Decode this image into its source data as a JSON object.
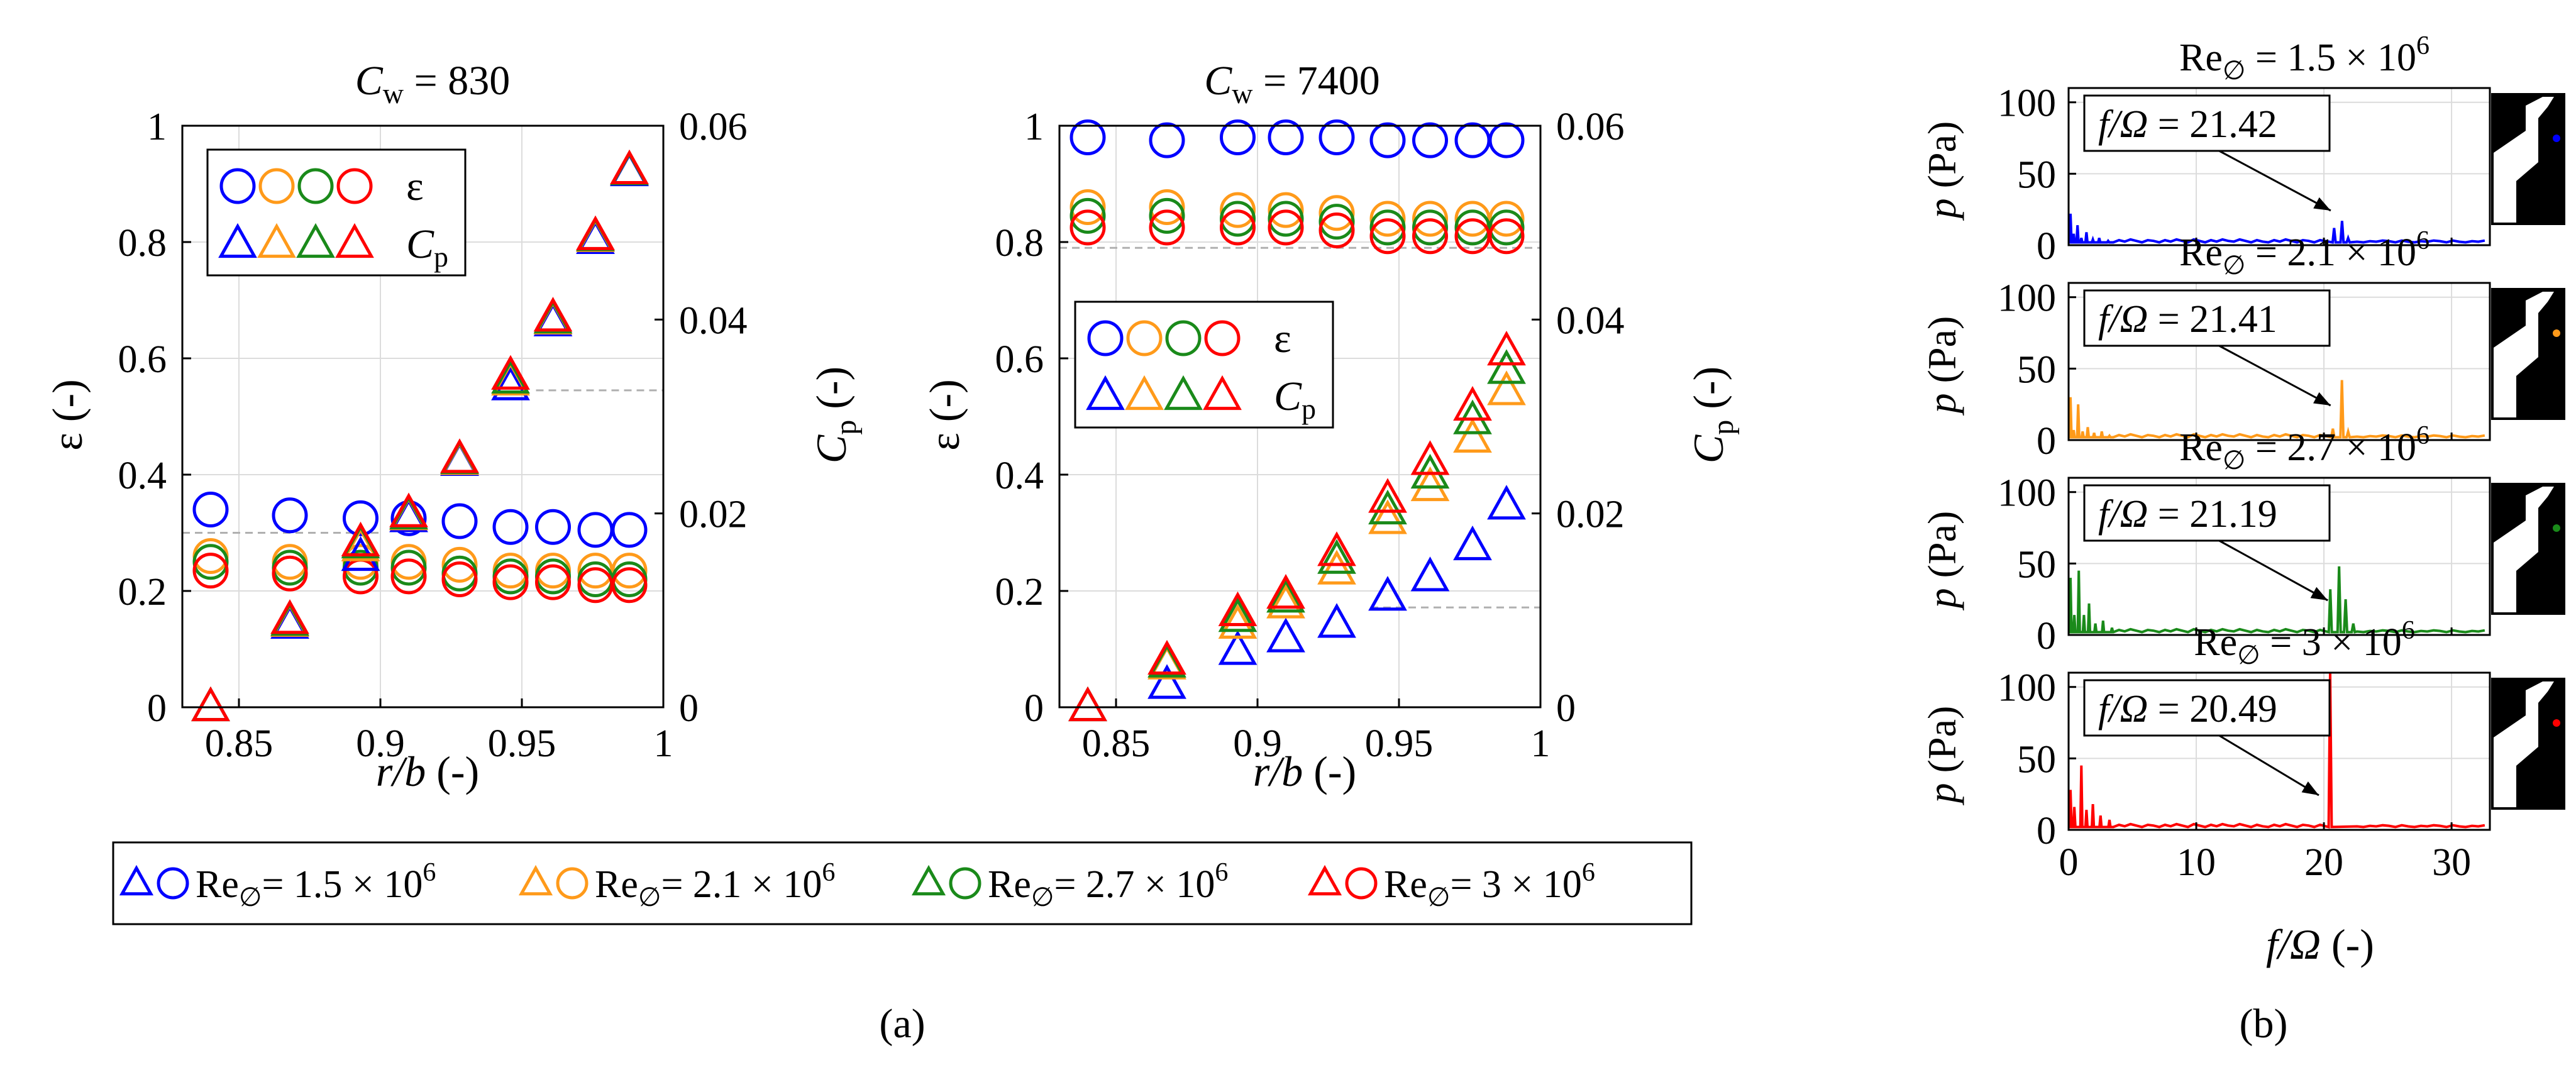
{
  "colors": {
    "Re_1.5e6": "#0000ff",
    "Re_2.1e6": "#ff9a1a",
    "Re_2.7e6": "#1a8a1a",
    "Re_3e6": "#ff0000",
    "grid": "#dcdcdc",
    "guide_dashed": "#b0b0b0"
  },
  "shared_legend": {
    "entries": [
      {
        "series": "Re_1.5e6",
        "text": "Re",
        "sub": "∅",
        "rest": "= 1.5 × 10",
        "sup": "6"
      },
      {
        "series": "Re_2.1e6",
        "text": "Re",
        "sub": "∅",
        "rest": "= 2.1 × 10",
        "sup": "6"
      },
      {
        "series": "Re_2.7e6",
        "text": "Re",
        "sub": "∅",
        "rest": "= 2.7 × 10",
        "sup": "6"
      },
      {
        "series": "Re_3e6",
        "text": "Re",
        "sub": "∅",
        "rest": "= 3 × 10",
        "sup": "6"
      }
    ]
  },
  "panel_labels": {
    "a": "(a)",
    "b": "(b)"
  },
  "chart_data": [
    {
      "type": "scatter",
      "id": "cw830",
      "title": {
        "main": "C",
        "sub": "w",
        "rest": " = 830"
      },
      "xlabel": {
        "main": "r/b",
        "rest": "  (-)"
      },
      "ylabel_left": "ε (-)",
      "ylabel_right": {
        "main": "C",
        "sub": "p",
        "rest": " (-)"
      },
      "xlim": [
        0.83,
        1.0
      ],
      "ylim_left": [
        0,
        1
      ],
      "ylim_right": [
        0,
        0.06
      ],
      "xticks": [
        0.85,
        0.9,
        0.95,
        1
      ],
      "xtick_labels": [
        "0.85",
        "0.9",
        "0.95",
        "1"
      ],
      "yticks_left": [
        0,
        0.2,
        0.4,
        0.6,
        0.8,
        1
      ],
      "ytick_labels_left": [
        "0",
        "0.2",
        "0.4",
        "0.6",
        "0.8",
        "1"
      ],
      "yticks_right": [
        0,
        0.02,
        0.04,
        0.06
      ],
      "ytick_labels_right": [
        "0",
        "0.02",
        "0.04",
        "0.06"
      ],
      "grid": true,
      "guide_lines": [
        {
          "axis": "left",
          "y": 0.3,
          "x_from": 0.83,
          "x_to": 0.9
        },
        {
          "axis": "right",
          "y": 0.0327,
          "x_from": 0.955,
          "x_to": 1.0
        }
      ],
      "legend": {
        "position": "top-left",
        "rows": [
          {
            "marker": "circle",
            "label": "ε",
            "label_sub": ""
          },
          {
            "marker": "triangle",
            "label": "C",
            "label_sub": "p"
          }
        ]
      },
      "r_b": [
        0.84,
        0.868,
        0.893,
        0.91,
        0.928,
        0.946,
        0.961,
        0.976,
        0.988
      ],
      "series": [
        {
          "key": "Re_1.5e6",
          "epsilon": [
            0.34,
            0.33,
            0.325,
            0.325,
            0.32,
            0.31,
            0.31,
            0.305,
            0.305
          ],
          "Cp": [
            0.0,
            0.0085,
            0.0155,
            0.0195,
            0.0253,
            0.0331,
            0.0397,
            0.0482,
            0.0552
          ]
        },
        {
          "key": "Re_2.1e6",
          "epsilon": [
            0.26,
            0.25,
            0.25,
            0.25,
            0.245,
            0.235,
            0.235,
            0.235,
            0.235
          ],
          "Cp": [
            0.0,
            0.0087,
            0.0165,
            0.0197,
            0.0254,
            0.0336,
            0.0399,
            0.0484,
            0.0553
          ]
        },
        {
          "key": "Re_2.7e6",
          "epsilon": [
            0.25,
            0.24,
            0.24,
            0.24,
            0.23,
            0.225,
            0.225,
            0.22,
            0.22
          ],
          "Cp": [
            0.0,
            0.0088,
            0.0168,
            0.0198,
            0.0255,
            0.0338,
            0.04,
            0.0485,
            0.0553
          ]
        },
        {
          "key": "Re_3e6",
          "epsilon": [
            0.235,
            0.23,
            0.225,
            0.225,
            0.22,
            0.215,
            0.215,
            0.21,
            0.21
          ],
          "Cp": [
            0.0,
            0.009,
            0.017,
            0.02,
            0.0256,
            0.0342,
            0.0402,
            0.0486,
            0.0554
          ]
        }
      ]
    },
    {
      "type": "scatter",
      "id": "cw7400",
      "title": {
        "main": "C",
        "sub": "w",
        "rest": " = 7400"
      },
      "xlabel": {
        "main": "r/b",
        "rest": "  (-)"
      },
      "ylabel_left": "ε (-)",
      "ylabel_right": {
        "main": "C",
        "sub": "p",
        "rest": " (-)"
      },
      "xlim": [
        0.83,
        1.0
      ],
      "ylim_left": [
        0,
        1
      ],
      "ylim_right": [
        0,
        0.06
      ],
      "xticks": [
        0.85,
        0.9,
        0.95,
        1
      ],
      "xtick_labels": [
        "0.85",
        "0.9",
        "0.95",
        "1"
      ],
      "yticks_left": [
        0,
        0.2,
        0.4,
        0.6,
        0.8,
        1
      ],
      "ytick_labels_left": [
        "0",
        "0.2",
        "0.4",
        "0.6",
        "0.8",
        "1"
      ],
      "yticks_right": [
        0,
        0.02,
        0.04,
        0.06
      ],
      "ytick_labels_right": [
        "0",
        "0.02",
        "0.04",
        "0.06"
      ],
      "grid": true,
      "guide_lines": [
        {
          "axis": "left",
          "y": 0.79,
          "x_from": 0.83,
          "x_to": 1.0
        },
        {
          "axis": "right",
          "y": 0.0103,
          "x_from": 0.94,
          "x_to": 1.0
        }
      ],
      "legend": {
        "position": "center-left",
        "rows": [
          {
            "marker": "circle",
            "label": "ε",
            "label_sub": ""
          },
          {
            "marker": "triangle",
            "label": "C",
            "label_sub": "p"
          }
        ]
      },
      "r_b": [
        0.84,
        0.868,
        0.893,
        0.91,
        0.928,
        0.946,
        0.961,
        0.976,
        0.988
      ],
      "series": [
        {
          "key": "Re_1.5e6",
          "epsilon": [
            0.98,
            0.975,
            0.98,
            0.98,
            0.98,
            0.975,
            0.975,
            0.975,
            0.975
          ],
          "Cp": [
            0.0,
            0.0023,
            0.0058,
            0.0071,
            0.0086,
            0.0114,
            0.0134,
            0.0166,
            0.0208
          ]
        },
        {
          "key": "Re_2.1e6",
          "epsilon": [
            0.86,
            0.86,
            0.855,
            0.855,
            0.85,
            0.84,
            0.84,
            0.84,
            0.84
          ],
          "Cp": [
            0.0,
            0.0043,
            0.0085,
            0.0106,
            0.0141,
            0.0193,
            0.0227,
            0.0277,
            0.0326
          ]
        },
        {
          "key": "Re_2.7e6",
          "epsilon": [
            0.845,
            0.845,
            0.84,
            0.84,
            0.835,
            0.825,
            0.825,
            0.825,
            0.825
          ],
          "Cp": [
            0.0,
            0.0045,
            0.0092,
            0.0112,
            0.0152,
            0.0203,
            0.024,
            0.0296,
            0.0348
          ]
        },
        {
          "key": "Re_3e6",
          "epsilon": [
            0.825,
            0.825,
            0.825,
            0.825,
            0.82,
            0.81,
            0.81,
            0.81,
            0.81
          ],
          "Cp": [
            0.0,
            0.0048,
            0.0098,
            0.0116,
            0.016,
            0.0215,
            0.0254,
            0.031,
            0.0367
          ]
        }
      ]
    },
    {
      "type": "line",
      "id": "spectra",
      "xlabel": {
        "main": "f/Ω",
        "rest": " (-)"
      },
      "ylabel": {
        "main": "p",
        "rest": " (Pa)"
      },
      "xlim": [
        0,
        33
      ],
      "ylim": [
        0,
        110
      ],
      "xticks": [
        0,
        10,
        20,
        30
      ],
      "xtick_labels": [
        "0",
        "10",
        "20",
        "30"
      ],
      "yticks": [
        0,
        50,
        100
      ],
      "ytick_labels": [
        "0",
        "50",
        "100"
      ],
      "grid": true,
      "subplots": [
        {
          "key": "Re_1.5e6",
          "title": {
            "text": "Re",
            "sub": "∅",
            "rest": " = 1.5 × 10",
            "sup": "6"
          },
          "annotation": {
            "text": "f/Ω = 21.42",
            "x": 21.42
          },
          "lowfreq": [
            [
              0.15,
              22
            ],
            [
              0.4,
              8
            ],
            [
              0.7,
              14
            ],
            [
              1.0,
              5
            ],
            [
              1.4,
              9
            ],
            [
              1.9,
              4
            ],
            [
              2.4,
              5
            ],
            [
              3.1,
              3
            ]
          ],
          "peaks": [
            [
              20.8,
              12
            ],
            [
              21.42,
              17
            ],
            [
              21.9,
              5
            ]
          ]
        },
        {
          "key": "Re_2.1e6",
          "title": {
            "text": "Re",
            "sub": "∅",
            "rest": " = 2.1 × 10",
            "sup": "6"
          },
          "annotation": {
            "text": "f/Ω = 21.41",
            "x": 21.41
          },
          "lowfreq": [
            [
              0.15,
              30
            ],
            [
              0.4,
              7
            ],
            [
              0.75,
              25
            ],
            [
              1.1,
              6
            ],
            [
              1.5,
              9
            ],
            [
              2.0,
              5
            ],
            [
              2.6,
              6
            ],
            [
              3.2,
              3
            ]
          ],
          "peaks": [
            [
              20.7,
              8
            ],
            [
              21.41,
              42
            ],
            [
              21.9,
              6
            ]
          ]
        },
        {
          "key": "Re_2.7e6",
          "title": {
            "text": "Re",
            "sub": "∅",
            "rest": " = 2.7 × 10",
            "sup": "6"
          },
          "annotation": {
            "text": "f/Ω = 21.19",
            "x": 21.19
          },
          "lowfreq": [
            [
              0.15,
              40
            ],
            [
              0.45,
              14
            ],
            [
              0.8,
              45
            ],
            [
              1.2,
              14
            ],
            [
              1.6,
              22
            ],
            [
              2.1,
              8
            ],
            [
              2.7,
              10
            ],
            [
              3.4,
              5
            ]
          ],
          "peaks": [
            [
              20.5,
              32
            ],
            [
              21.19,
              48
            ],
            [
              21.7,
              25
            ],
            [
              22.3,
              8
            ]
          ]
        },
        {
          "key": "Re_3e6",
          "title": {
            "text": "Re",
            "sub": "∅",
            "rest": " = 3 × 10",
            "sup": "6"
          },
          "annotation": {
            "text": "f/Ω = 20.49",
            "x": 20.49
          },
          "lowfreq": [
            [
              0.15,
              28
            ],
            [
              0.45,
              16
            ],
            [
              1.0,
              45
            ],
            [
              1.4,
              14
            ],
            [
              1.9,
              18
            ],
            [
              2.5,
              10
            ],
            [
              3.2,
              7
            ]
          ],
          "peaks": [
            [
              20.49,
              110
            ]
          ]
        }
      ]
    }
  ]
}
